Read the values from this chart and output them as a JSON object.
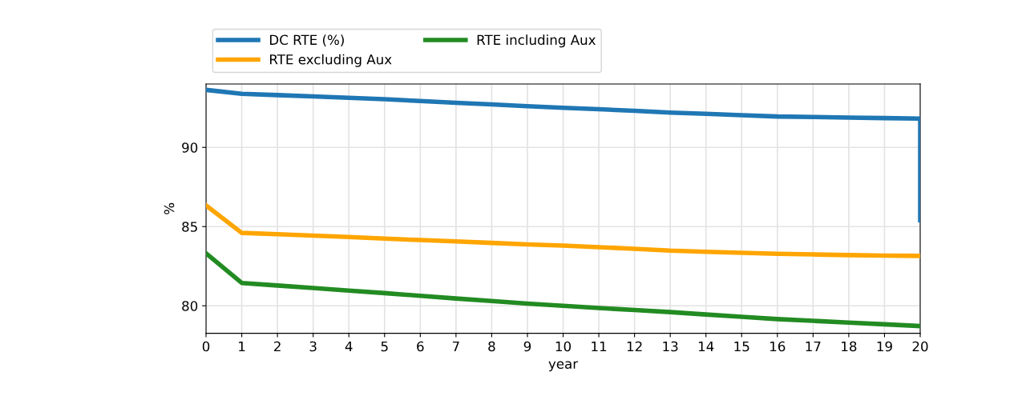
{
  "chart_data": {
    "type": "line",
    "xlabel": "year",
    "ylabel": "%",
    "xlim": [
      0,
      20
    ],
    "ylim": [
      78.26,
      94.0
    ],
    "xticks": [
      0,
      1,
      2,
      3,
      4,
      5,
      6,
      7,
      8,
      9,
      10,
      11,
      12,
      13,
      14,
      15,
      16,
      17,
      18,
      19,
      20
    ],
    "yticks": [
      80,
      85,
      90
    ],
    "grid": true,
    "legend": "top",
    "line_style": "solid",
    "marker": "none",
    "series": [
      {
        "name": "DC RTE (%)",
        "color": "#1f77b4",
        "x": [
          0,
          1,
          2,
          3,
          4,
          5,
          6,
          7,
          8,
          9,
          10,
          11,
          12,
          13,
          14,
          15,
          16,
          17,
          18,
          19,
          20,
          20
        ],
        "values": [
          93.63,
          93.38,
          93.3,
          93.22,
          93.13,
          93.04,
          92.93,
          92.82,
          92.71,
          92.6,
          92.5,
          92.41,
          92.31,
          92.2,
          92.12,
          92.03,
          91.95,
          91.92,
          91.88,
          91.85,
          91.82,
          85.4
        ]
      },
      {
        "name": "RTE excluding Aux",
        "color": "#ffa500",
        "x": [
          0,
          1,
          2,
          3,
          4,
          5,
          6,
          7,
          8,
          9,
          10,
          11,
          12,
          13,
          14,
          15,
          16,
          17,
          18,
          19,
          20
        ],
        "values": [
          86.34,
          84.6,
          84.52,
          84.43,
          84.34,
          84.24,
          84.15,
          84.06,
          83.97,
          83.88,
          83.8,
          83.7,
          83.6,
          83.48,
          83.41,
          83.34,
          83.28,
          83.24,
          83.2,
          83.17,
          83.15
        ]
      },
      {
        "name": "RTE including Aux",
        "color": "#228b22",
        "x": [
          0,
          1,
          2,
          3,
          4,
          5,
          6,
          7,
          8,
          9,
          10,
          11,
          12,
          13,
          14,
          15,
          16,
          17,
          18,
          19,
          20
        ],
        "values": [
          83.31,
          81.44,
          81.28,
          81.12,
          80.96,
          80.8,
          80.63,
          80.46,
          80.3,
          80.14,
          80.0,
          79.86,
          79.73,
          79.6,
          79.45,
          79.3,
          79.16,
          79.05,
          78.94,
          78.83,
          78.72
        ]
      }
    ]
  }
}
